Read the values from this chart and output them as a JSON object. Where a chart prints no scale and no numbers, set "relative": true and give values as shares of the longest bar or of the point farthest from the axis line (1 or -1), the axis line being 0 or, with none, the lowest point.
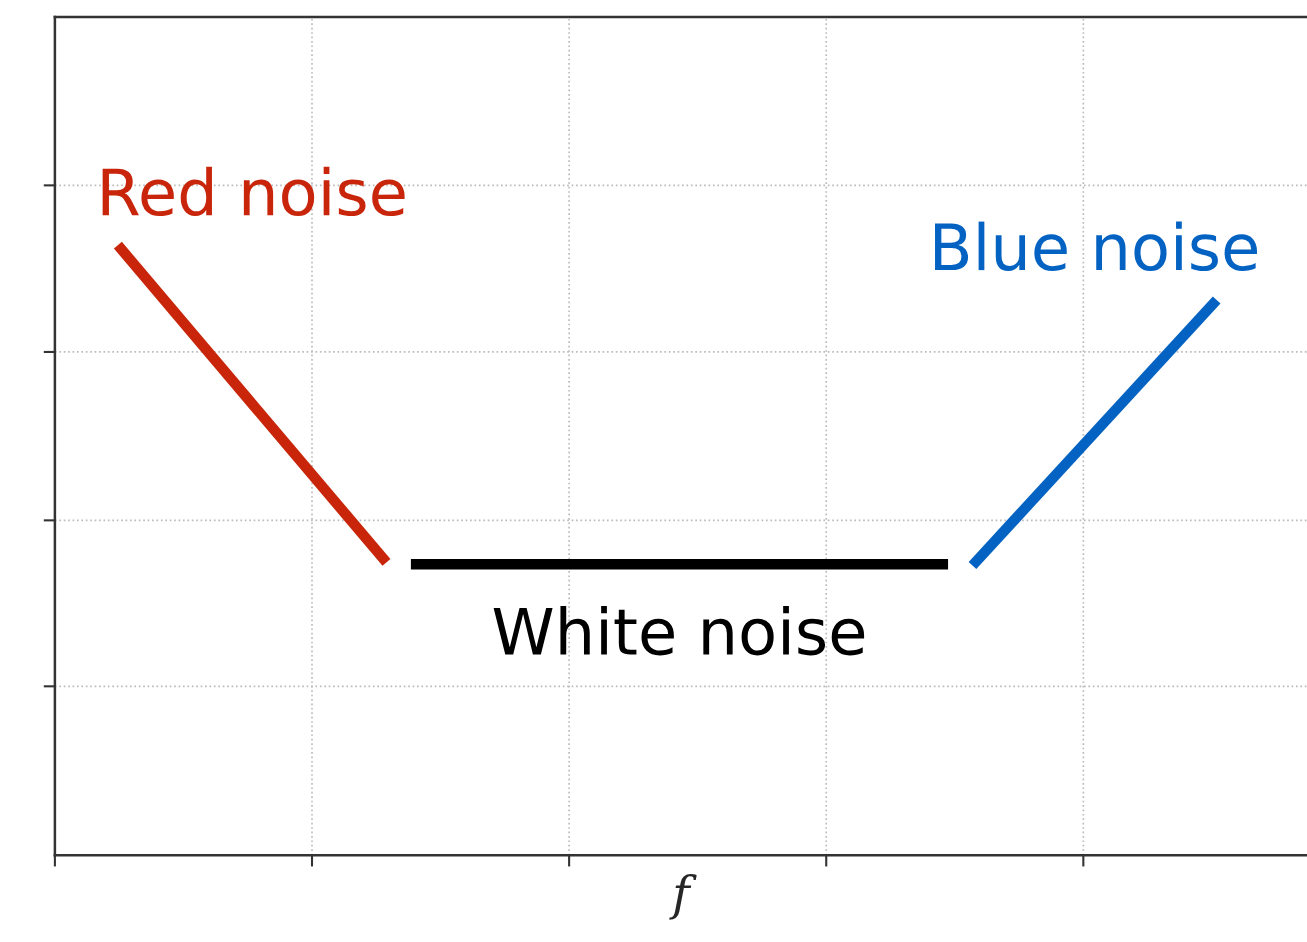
{
  "chart_data": {
    "type": "line",
    "relative": true,
    "xlabel": "f",
    "categories": [
      null,
      null,
      null,
      null,
      null,
      null,
      null,
      null,
      null,
      null,
      null,
      null,
      null,
      null,
      null,
      null,
      null,
      null,
      null,
      null,
      null,
      null,
      null,
      null,
      null,
      null,
      null,
      null,
      null,
      null,
      null,
      null,
      null,
      null,
      null,
      null,
      null,
      null,
      null,
      null,
      null,
      null,
      null,
      null,
      null,
      null
    ],
    "grid": true,
    "line_style": "solid",
    "marker": "none",
    "series": [
      {
        "name": "Red noise",
        "color": "#c8250a",
        "values": [
          1.0,
          null,
          null,
          null,
          null,
          null,
          null,
          null,
          null,
          null,
          null,
          0.48,
          null,
          null,
          null,
          null,
          null,
          null,
          null,
          null,
          null,
          null,
          null,
          null,
          null,
          null,
          null,
          null,
          null,
          null,
          null,
          null,
          null,
          null,
          null,
          null,
          null,
          null,
          null,
          null,
          null,
          null,
          null,
          null,
          null,
          null
        ]
      },
      {
        "name": "White noise",
        "color": "#000000",
        "values": [
          null,
          null,
          null,
          null,
          null,
          null,
          null,
          null,
          null,
          null,
          null,
          null,
          0.477,
          null,
          null,
          null,
          null,
          null,
          null,
          null,
          null,
          null,
          null,
          null,
          null,
          null,
          null,
          null,
          null,
          null,
          null,
          null,
          null,
          null,
          0.477,
          null,
          null,
          null,
          null,
          null,
          null,
          null,
          null,
          null,
          null,
          null
        ]
      },
      {
        "name": "Blue noise",
        "color": "#0462c2",
        "values": [
          null,
          null,
          null,
          null,
          null,
          null,
          null,
          null,
          null,
          null,
          null,
          null,
          null,
          null,
          null,
          null,
          null,
          null,
          null,
          null,
          null,
          null,
          null,
          null,
          null,
          null,
          null,
          null,
          null,
          null,
          null,
          null,
          null,
          null,
          null,
          0.475,
          null,
          null,
          null,
          null,
          null,
          null,
          null,
          null,
          null,
          0.91
        ]
      }
    ]
  }
}
